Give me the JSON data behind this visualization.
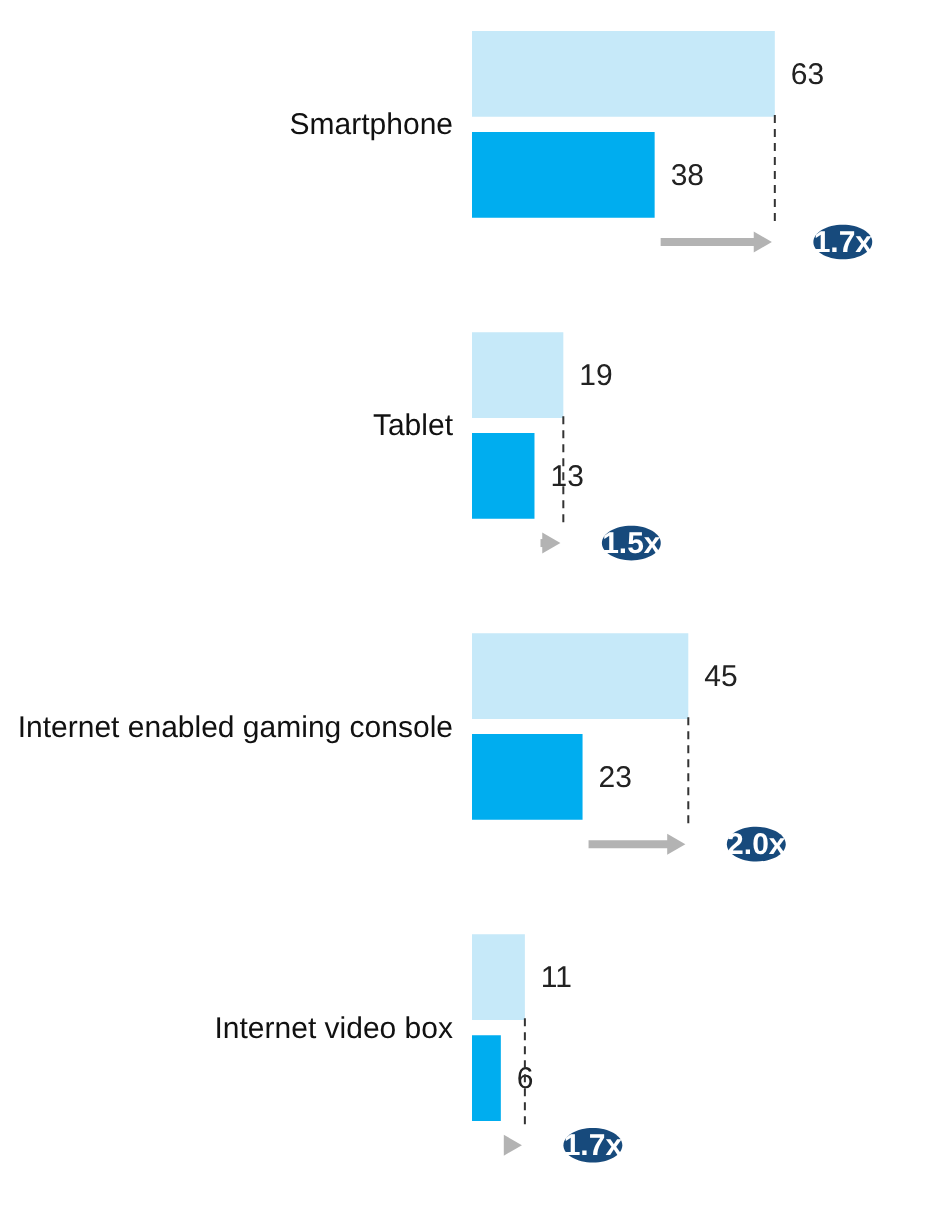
{
  "chart_data": {
    "type": "bar",
    "orientation": "horizontal",
    "categories": [
      "Smartphone",
      "Tablet",
      "Internet enabled gaming console",
      "Internet video box"
    ],
    "series": [
      {
        "color": "#c6e9f9",
        "values": [
          63,
          19,
          45,
          11
        ]
      },
      {
        "color": "#00adef",
        "values": [
          38,
          13,
          23,
          6
        ]
      }
    ],
    "data_labels": true,
    "tick_labels": "y",
    "legend": false,
    "annotations": [
      "1.7x",
      "1.5x",
      "2.0x",
      "1.7x"
    ]
  }
}
